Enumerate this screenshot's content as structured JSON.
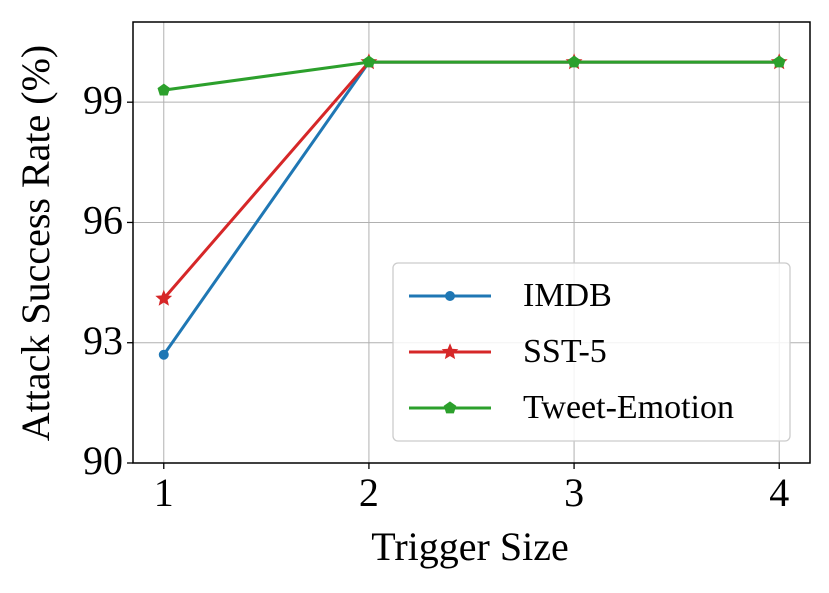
{
  "chart_data": {
    "type": "line",
    "x_label": "Trigger Size",
    "y_label": "Attack Success Rate (%)",
    "x": [
      1,
      2,
      3,
      4
    ],
    "series": [
      {
        "name": "IMDB",
        "color": "#1f77b4",
        "marker": "circle",
        "values": [
          92.7,
          100,
          100,
          100
        ]
      },
      {
        "name": "SST-5",
        "color": "#d62728",
        "marker": "star",
        "values": [
          94.1,
          100,
          100,
          100
        ]
      },
      {
        "name": "Tweet-Emotion",
        "color": "#2ca02c",
        "marker": "pentagon",
        "values": [
          99.3,
          100,
          100,
          100
        ]
      }
    ],
    "xlim": [
      0.85,
      4.15
    ],
    "xticks": [
      1,
      2,
      3,
      4
    ],
    "ylim": [
      90,
      101
    ],
    "yticks": [
      90,
      93,
      96,
      99
    ],
    "grid": true,
    "legend_position": "lower right"
  }
}
